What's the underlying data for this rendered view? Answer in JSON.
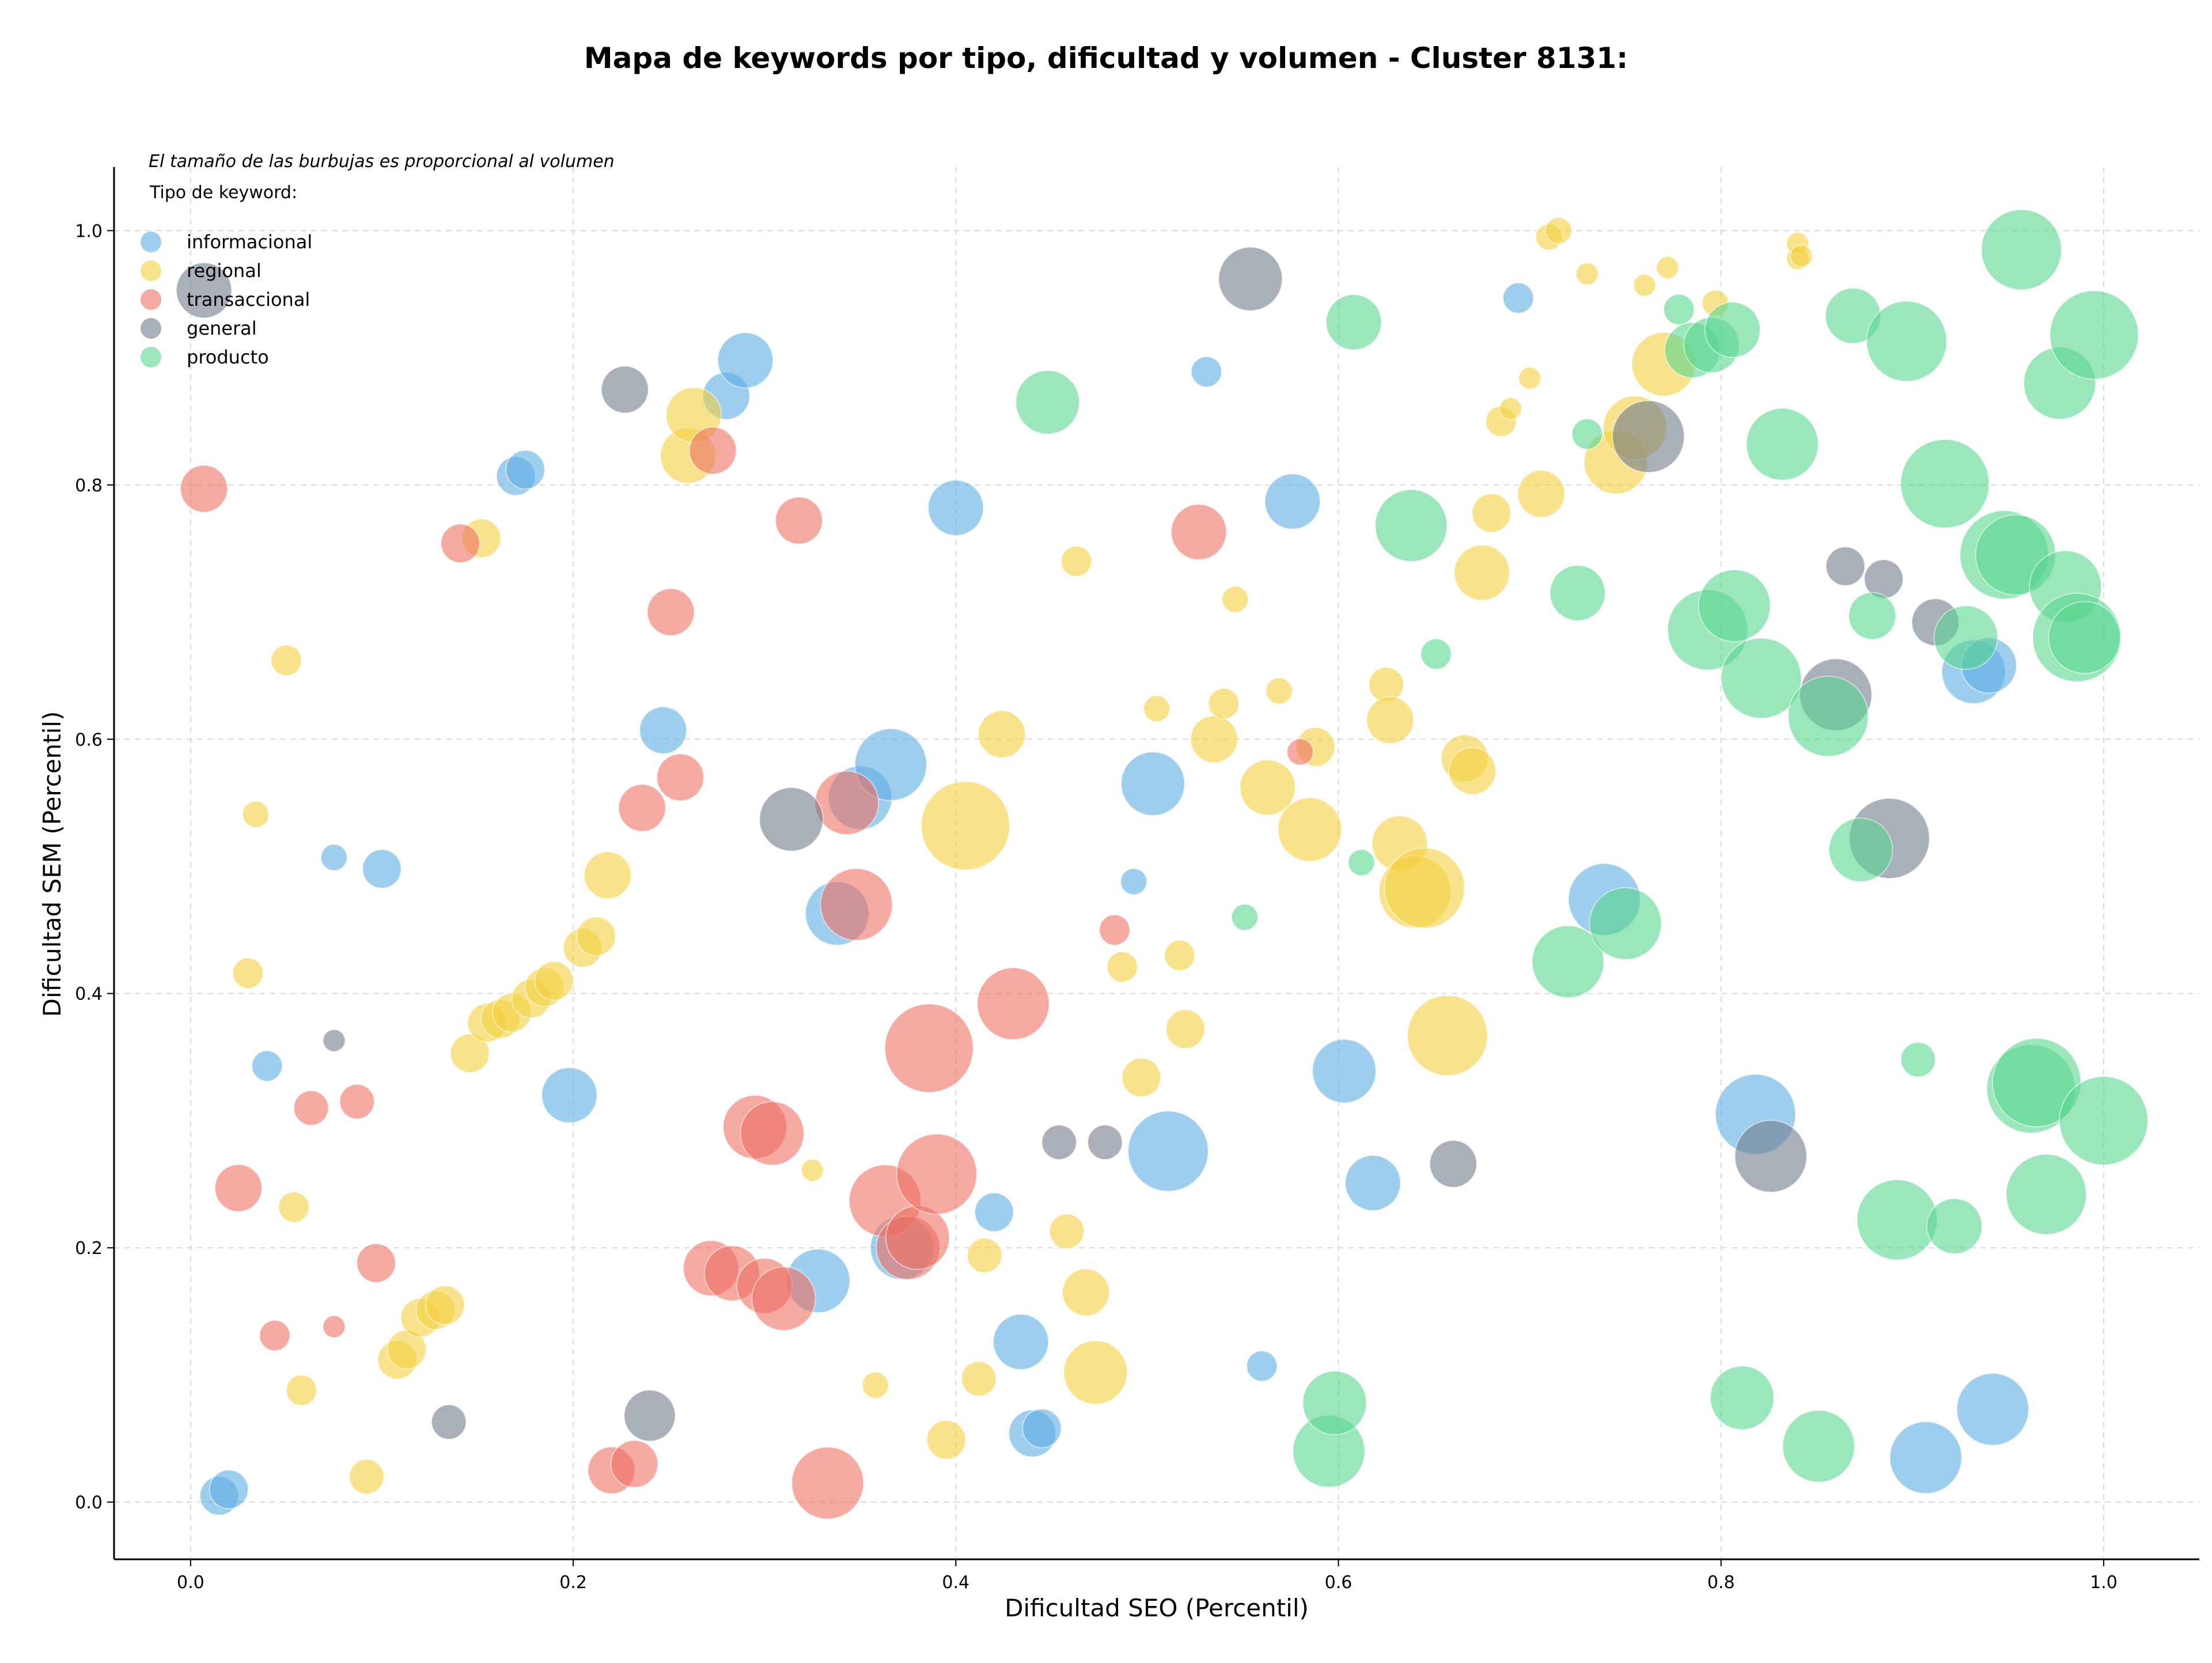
{
  "chart_data": {
    "type": "scatter",
    "title": "Mapa de keywords por tipo, dificultad y volumen - Cluster 8131:",
    "annotation": "El tamaño de las burbujas es proporcional al volumen",
    "xlabel": "Dificultad SEO (Percentil)",
    "ylabel": "Dificultad SEM (Percentil)",
    "xlim": [
      -0.04,
      1.05
    ],
    "ylim": [
      -0.045,
      1.05
    ],
    "xticks": [
      0.0,
      0.2,
      0.4,
      0.6,
      0.8,
      1.0
    ],
    "yticks": [
      0.0,
      0.2,
      0.4,
      0.6,
      0.8,
      1.0
    ],
    "xtick_labels": [
      "0.0",
      "0.2",
      "0.4",
      "0.6",
      "0.8",
      "1.0"
    ],
    "ytick_labels": [
      "0.0",
      "0.2",
      "0.4",
      "0.6",
      "0.8",
      "1.0"
    ],
    "grid": true,
    "legend": {
      "title": "Tipo de keyword:",
      "placement": "top-left"
    },
    "series": [
      {
        "name": "informacional",
        "color": "#5DADE2",
        "points": [
          [
            0.015,
            0.005,
            3
          ],
          [
            0.02,
            0.01,
            3
          ],
          [
            0.04,
            0.343,
            2
          ],
          [
            0.075,
            0.507,
            1.5
          ],
          [
            0.1,
            0.498,
            3
          ],
          [
            0.17,
            0.807,
            3
          ],
          [
            0.175,
            0.812,
            3
          ],
          [
            0.198,
            0.32,
            5
          ],
          [
            0.247,
            0.607,
            4
          ],
          [
            0.28,
            0.87,
            4
          ],
          [
            0.29,
            0.898,
            5
          ],
          [
            0.328,
            0.174,
            6
          ],
          [
            0.338,
            0.463,
            6
          ],
          [
            0.35,
            0.554,
            6
          ],
          [
            0.366,
            0.58,
            7
          ],
          [
            0.372,
            0.2,
            6
          ],
          [
            0.4,
            0.782,
            5
          ],
          [
            0.42,
            0.228,
            3
          ],
          [
            0.434,
            0.126,
            5
          ],
          [
            0.44,
            0.054,
            4
          ],
          [
            0.445,
            0.058,
            3
          ],
          [
            0.493,
            0.488,
            1.5
          ],
          [
            0.503,
            0.565,
            6
          ],
          [
            0.511,
            0.276,
            8
          ],
          [
            0.531,
            0.889,
            2
          ],
          [
            0.56,
            0.107,
            2
          ],
          [
            0.576,
            0.787,
            5
          ],
          [
            0.603,
            0.339,
            6
          ],
          [
            0.618,
            0.251,
            5
          ],
          [
            0.694,
            0.947,
            2
          ],
          [
            0.739,
            0.474,
            7
          ],
          [
            0.818,
            0.305,
            8
          ],
          [
            0.907,
            0.035,
            7
          ],
          [
            0.932,
            0.653,
            6
          ],
          [
            0.942,
            0.073,
            7
          ],
          [
            0.94,
            0.658,
            5
          ]
        ]
      },
      {
        "name": "regional",
        "color": "#F4D03F",
        "points": [
          [
            0.03,
            0.416,
            2
          ],
          [
            0.034,
            0.541,
            1.5
          ],
          [
            0.05,
            0.662,
            2
          ],
          [
            0.054,
            0.232,
            2
          ],
          [
            0.058,
            0.088,
            2
          ],
          [
            0.092,
            0.02,
            2.5
          ],
          [
            0.108,
            0.112,
            3
          ],
          [
            0.113,
            0.12,
            3
          ],
          [
            0.12,
            0.145,
            3
          ],
          [
            0.128,
            0.151,
            3
          ],
          [
            0.133,
            0.155,
            3
          ],
          [
            0.146,
            0.353,
            3
          ],
          [
            0.152,
            0.758,
            3
          ],
          [
            0.155,
            0.377,
            3
          ],
          [
            0.162,
            0.38,
            3
          ],
          [
            0.168,
            0.385,
            3
          ],
          [
            0.178,
            0.396,
            3
          ],
          [
            0.185,
            0.405,
            3
          ],
          [
            0.19,
            0.41,
            3
          ],
          [
            0.205,
            0.436,
            3
          ],
          [
            0.212,
            0.445,
            3
          ],
          [
            0.218,
            0.493,
            4
          ],
          [
            0.26,
            0.823,
            5
          ],
          [
            0.263,
            0.855,
            5
          ],
          [
            0.325,
            0.261,
            1
          ],
          [
            0.358,
            0.092,
            1.5
          ],
          [
            0.395,
            0.049,
            3
          ],
          [
            0.405,
            0.532,
            9
          ],
          [
            0.412,
            0.097,
            2.5
          ],
          [
            0.415,
            0.194,
            2.5
          ],
          [
            0.424,
            0.604,
            4
          ],
          [
            0.463,
            0.74,
            2
          ],
          [
            0.458,
            0.213,
            2.5
          ],
          [
            0.468,
            0.165,
            4
          ],
          [
            0.473,
            0.102,
            6
          ],
          [
            0.487,
            0.421,
            2
          ],
          [
            0.497,
            0.334,
            3
          ],
          [
            0.505,
            0.624,
            1.5
          ],
          [
            0.517,
            0.43,
            2
          ],
          [
            0.52,
            0.372,
            3
          ],
          [
            0.535,
            0.6,
            4
          ],
          [
            0.54,
            0.628,
            2
          ],
          [
            0.546,
            0.71,
            1.5
          ],
          [
            0.563,
            0.562,
            5
          ],
          [
            0.569,
            0.638,
            1.5
          ],
          [
            0.585,
            0.529,
            6
          ],
          [
            0.588,
            0.594,
            3
          ],
          [
            0.625,
            0.643,
            2.5
          ],
          [
            0.627,
            0.615,
            4
          ],
          [
            0.632,
            0.518,
            5
          ],
          [
            0.64,
            0.48,
            7
          ],
          [
            0.645,
            0.483,
            8
          ],
          [
            0.657,
            0.367,
            8
          ],
          [
            0.666,
            0.585,
            4
          ],
          [
            0.67,
            0.575,
            4
          ],
          [
            0.675,
            0.731,
            5
          ],
          [
            0.68,
            0.778,
            3
          ],
          [
            0.685,
            0.85,
            2
          ],
          [
            0.69,
            0.86,
            1
          ],
          [
            0.7,
            0.884,
            1
          ],
          [
            0.706,
            0.793,
            4
          ],
          [
            0.71,
            0.995,
            1.5
          ],
          [
            0.715,
            1.0,
            1.5
          ],
          [
            0.73,
            0.966,
            1
          ],
          [
            0.745,
            0.818,
            6
          ],
          [
            0.755,
            0.845,
            6
          ],
          [
            0.76,
            0.957,
            1
          ],
          [
            0.77,
            0.895,
            6
          ],
          [
            0.772,
            0.971,
            1
          ],
          [
            0.797,
            0.943,
            1.5
          ],
          [
            0.84,
            0.978,
            1
          ],
          [
            0.84,
            0.99,
            1
          ],
          [
            0.842,
            0.98,
            1
          ]
        ]
      },
      {
        "name": "transaccional",
        "color": "#EC7063",
        "points": [
          [
            0.007,
            0.797,
            4
          ],
          [
            0.025,
            0.247,
            4
          ],
          [
            0.044,
            0.131,
            2
          ],
          [
            0.063,
            0.31,
            2.5
          ],
          [
            0.075,
            0.138,
            1
          ],
          [
            0.087,
            0.315,
            2.5
          ],
          [
            0.097,
            0.188,
            3
          ],
          [
            0.141,
            0.754,
            3
          ],
          [
            0.22,
            0.025,
            4
          ],
          [
            0.232,
            0.03,
            4
          ],
          [
            0.236,
            0.546,
            4
          ],
          [
            0.251,
            0.7,
            4
          ],
          [
            0.256,
            0.57,
            4
          ],
          [
            0.273,
            0.827,
            4
          ],
          [
            0.272,
            0.184,
            5
          ],
          [
            0.283,
            0.18,
            5
          ],
          [
            0.295,
            0.295,
            6
          ],
          [
            0.3,
            0.17,
            5
          ],
          [
            0.304,
            0.29,
            6
          ],
          [
            0.31,
            0.16,
            6
          ],
          [
            0.318,
            0.772,
            4
          ],
          [
            0.333,
            0.015,
            7
          ],
          [
            0.343,
            0.55,
            6
          ],
          [
            0.348,
            0.47,
            7
          ],
          [
            0.363,
            0.237,
            7
          ],
          [
            0.375,
            0.2,
            6
          ],
          [
            0.38,
            0.208,
            6
          ],
          [
            0.386,
            0.357,
            9
          ],
          [
            0.39,
            0.258,
            8
          ],
          [
            0.43,
            0.392,
            7
          ],
          [
            0.483,
            0.45,
            2
          ],
          [
            0.527,
            0.763,
            5
          ],
          [
            0.58,
            0.59,
            1.5
          ]
        ]
      },
      {
        "name": "general",
        "color": "#707B8C",
        "points": [
          [
            0.007,
            0.953,
            5
          ],
          [
            0.075,
            0.363,
            1
          ],
          [
            0.135,
            0.063,
            2.5
          ],
          [
            0.227,
            0.875,
            4
          ],
          [
            0.24,
            0.068,
            4.5
          ],
          [
            0.314,
            0.537,
            6
          ],
          [
            0.454,
            0.283,
            2.5
          ],
          [
            0.478,
            0.283,
            2.5
          ],
          [
            0.554,
            0.962,
            6
          ],
          [
            0.66,
            0.266,
            4
          ],
          [
            0.762,
            0.838,
            7
          ],
          [
            0.826,
            0.272,
            7
          ],
          [
            0.86,
            0.635,
            7
          ],
          [
            0.865,
            0.736,
            3
          ],
          [
            0.885,
            0.726,
            3
          ],
          [
            0.888,
            0.522,
            8
          ],
          [
            0.912,
            0.692,
            4
          ]
        ]
      },
      {
        "name": "producto",
        "color": "#58D68D",
        "points": [
          [
            0.448,
            0.865,
            6
          ],
          [
            0.595,
            0.04,
            7
          ],
          [
            0.598,
            0.078,
            6
          ],
          [
            0.608,
            0.928,
            5
          ],
          [
            0.612,
            0.503,
            1.5
          ],
          [
            0.638,
            0.768,
            7
          ],
          [
            0.651,
            0.667,
            2
          ],
          [
            0.551,
            0.46,
            1.5
          ],
          [
            0.72,
            0.425,
            7
          ],
          [
            0.725,
            0.715,
            5
          ],
          [
            0.73,
            0.84,
            2
          ],
          [
            0.75,
            0.455,
            7
          ],
          [
            0.778,
            0.938,
            2
          ],
          [
            0.785,
            0.906,
            5
          ],
          [
            0.795,
            0.91,
            5
          ],
          [
            0.793,
            0.686,
            8
          ],
          [
            0.806,
            0.922,
            5
          ],
          [
            0.807,
            0.705,
            7
          ],
          [
            0.811,
            0.082,
            6
          ],
          [
            0.821,
            0.648,
            8
          ],
          [
            0.832,
            0.832,
            7
          ],
          [
            0.851,
            0.044,
            7
          ],
          [
            0.856,
            0.618,
            8
          ],
          [
            0.869,
            0.933,
            5
          ],
          [
            0.873,
            0.513,
            6
          ],
          [
            0.879,
            0.697,
            4
          ],
          [
            0.892,
            0.222,
            8
          ],
          [
            0.897,
            0.913,
            8
          ],
          [
            0.903,
            0.348,
            2.5
          ],
          [
            0.917,
            0.801,
            9
          ],
          [
            0.922,
            0.217,
            5
          ],
          [
            0.928,
            0.68,
            6
          ],
          [
            0.948,
            0.745,
            9
          ],
          [
            0.954,
            0.745,
            8
          ],
          [
            0.957,
            0.985,
            8
          ],
          [
            0.962,
            0.325,
            9
          ],
          [
            0.965,
            0.33,
            9
          ],
          [
            0.97,
            0.242,
            8
          ],
          [
            0.977,
            0.88,
            7
          ],
          [
            0.98,
            0.72,
            7
          ],
          [
            0.986,
            0.68,
            9
          ],
          [
            0.99,
            0.68,
            7
          ],
          [
            0.995,
            0.918,
            9
          ],
          [
            1.0,
            0.3,
            9
          ]
        ]
      }
    ]
  }
}
